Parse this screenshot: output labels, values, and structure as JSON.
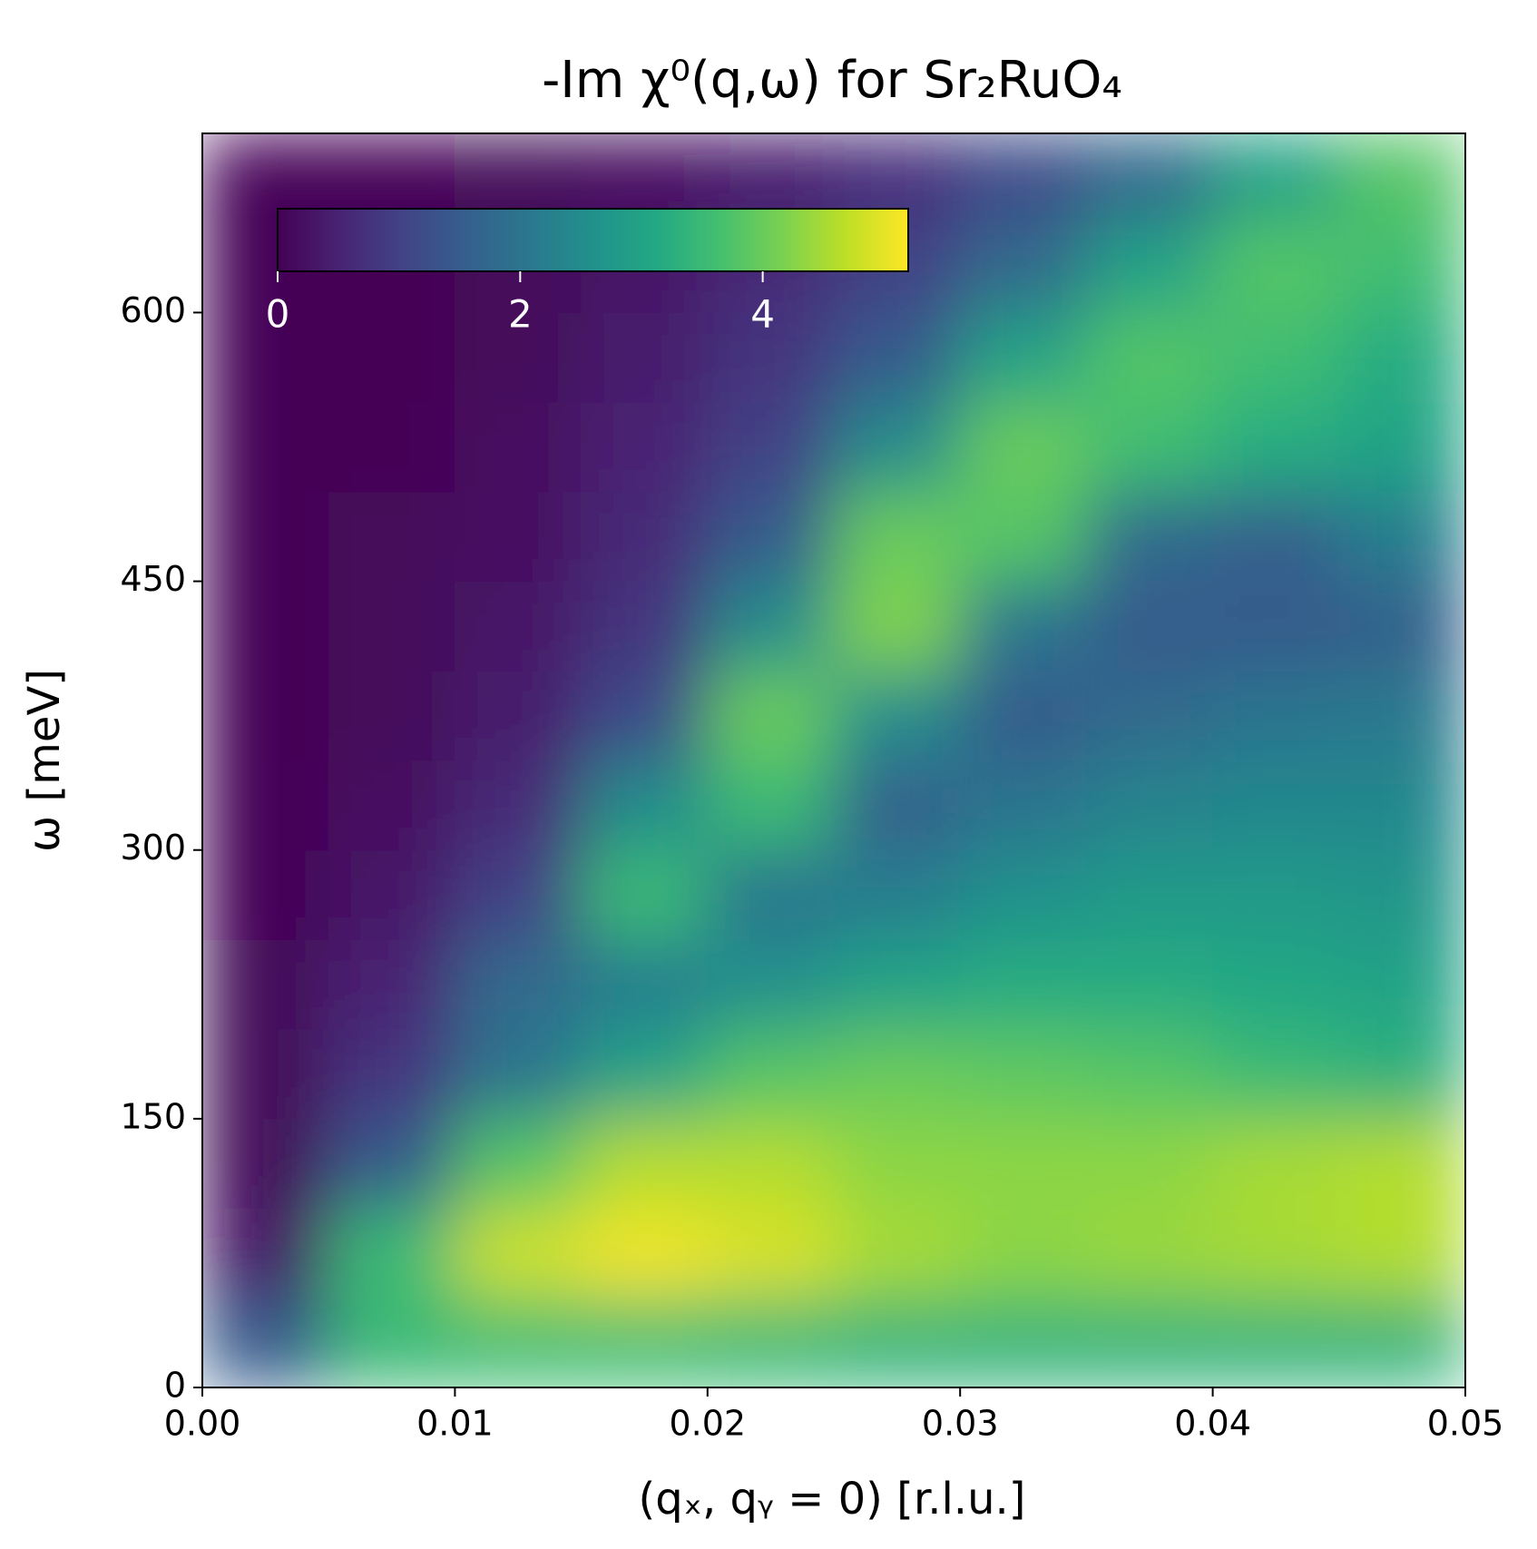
{
  "chart_data": {
    "type": "heatmap",
    "title": "-Im χ⁰(q,ω) for Sr₂RuO₄",
    "x_label": "(qₓ, qᵧ = 0) [r.l.u.]",
    "y_label": "ω [meV]",
    "colormap": "viridis",
    "x": [
      0.0025,
      0.0075,
      0.0125,
      0.0175,
      0.0225,
      0.0275,
      0.0325,
      0.0375,
      0.0425,
      0.0475
    ],
    "y": [
      25,
      75,
      125,
      175,
      225,
      275,
      325,
      375,
      425,
      475,
      525,
      575,
      625,
      675
    ],
    "z": [
      [
        1.5,
        3.5,
        3.6,
        3.6,
        3.5,
        3.4,
        3.4,
        3.4,
        3.4,
        3.4
      ],
      [
        0.3,
        3.5,
        4.8,
        5.1,
        4.9,
        4.5,
        4.3,
        4.4,
        4.5,
        4.6
      ],
      [
        0.1,
        1.5,
        3.8,
        4.6,
        4.6,
        4.3,
        4.3,
        4.3,
        4.5,
        4.6
      ],
      [
        0.1,
        0.8,
        2.0,
        3.0,
        3.8,
        4.0,
        3.9,
        3.8,
        3.5,
        3.3
      ],
      [
        0.1,
        0.5,
        1.8,
        2.2,
        2.6,
        3.0,
        3.2,
        3.2,
        3.1,
        3.0
      ],
      [
        0.05,
        0.3,
        1.0,
        3.5,
        2.0,
        2.2,
        2.6,
        2.8,
        2.8,
        2.7
      ],
      [
        0.05,
        0.2,
        0.6,
        2.5,
        3.5,
        1.6,
        2.0,
        2.3,
        2.4,
        2.4
      ],
      [
        0.05,
        0.1,
        0.4,
        1.2,
        4.0,
        2.5,
        1.5,
        1.8,
        2.0,
        2.1
      ],
      [
        0.05,
        0.1,
        0.3,
        0.8,
        2.5,
        4.2,
        2.0,
        1.5,
        1.5,
        1.6
      ],
      [
        0.05,
        0.1,
        0.2,
        0.6,
        1.5,
        4.0,
        3.8,
        1.8,
        1.6,
        2.2
      ],
      [
        0.05,
        0.05,
        0.2,
        0.5,
        1.0,
        2.5,
        4.0,
        3.6,
        3.2,
        3.0
      ],
      [
        0.05,
        0.05,
        0.1,
        0.4,
        0.8,
        1.5,
        3.0,
        3.8,
        3.6,
        3.2
      ],
      [
        0.05,
        0.05,
        0.1,
        0.3,
        0.6,
        1.0,
        1.8,
        3.0,
        3.8,
        3.6
      ],
      [
        0.05,
        0.05,
        0.1,
        0.2,
        0.4,
        0.7,
        1.2,
        1.8,
        3.0,
        3.8
      ]
    ],
    "xlim": [
      0,
      0.05
    ],
    "xticks": [
      {
        "value": 0,
        "label": "0.00"
      },
      0.01,
      0.02,
      0.03,
      0.04,
      0.05
    ],
    "ylim": [
      0,
      700
    ],
    "yticks": [
      0,
      150,
      300,
      450,
      600
    ],
    "clim": [
      0,
      5.2
    ],
    "cticks": [
      0,
      2,
      4
    ]
  }
}
